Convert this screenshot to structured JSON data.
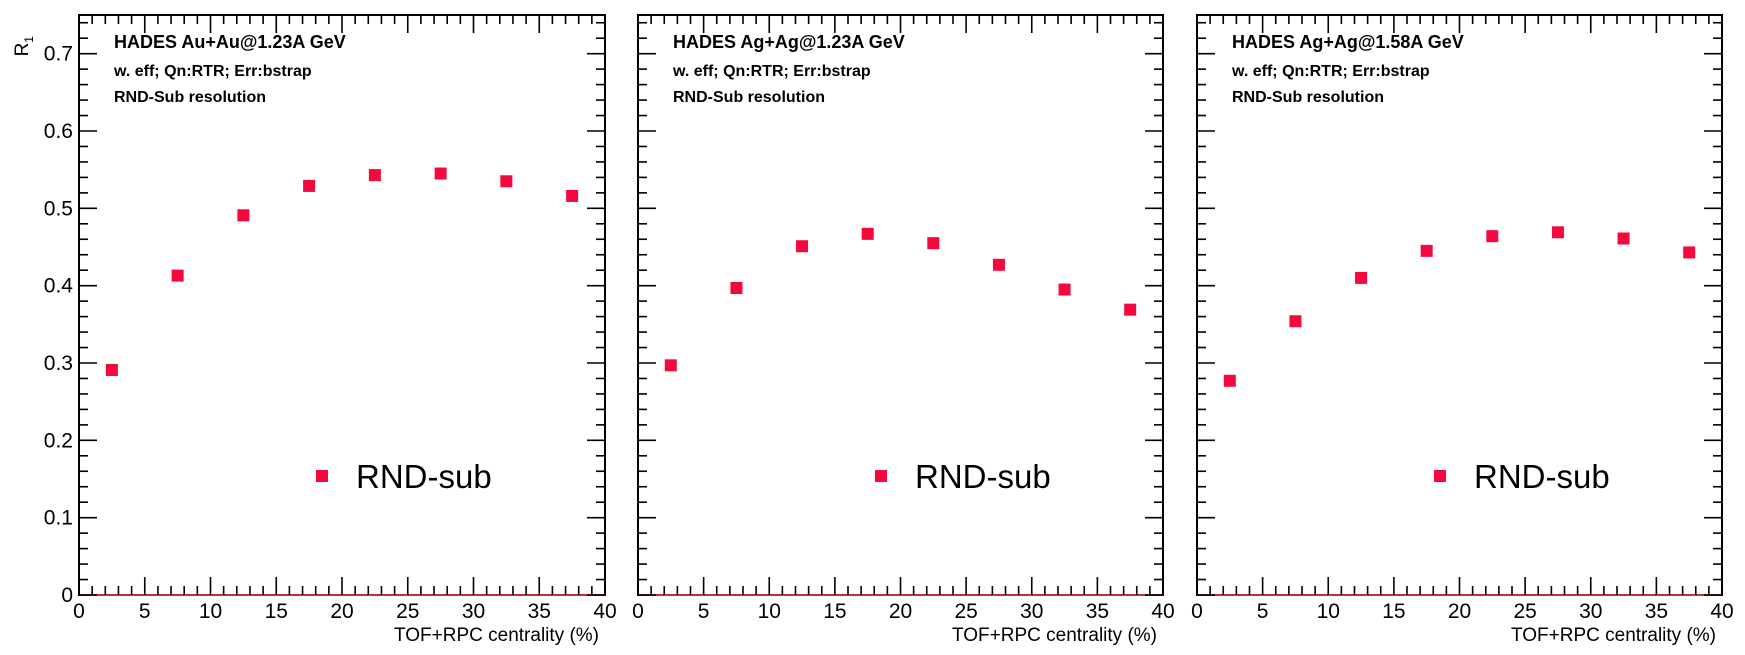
{
  "colors": {
    "marker": "#f5083e",
    "axis": "#000000",
    "zero_line": "#c0303a",
    "background": "#ffffff"
  },
  "chart_data": [
    {
      "type": "scatter",
      "title": "HADES Au+Au@1.23A GeV",
      "annotations": [
        "w. eff; Qn:RTR; Err:bstrap",
        "RND-Sub resolution"
      ],
      "xlabel": "TOF+RPC centrality (%)",
      "ylabel": "R",
      "ylabel_sub": "1",
      "xlim": [
        0,
        40
      ],
      "ylim": [
        0,
        0.75
      ],
      "xticks": [
        "0",
        "5",
        "10",
        "15",
        "20",
        "25",
        "30",
        "35",
        "40"
      ],
      "yticks": [
        "0",
        "0.1",
        "0.2",
        "0.3",
        "0.4",
        "0.5",
        "0.6",
        "0.7"
      ],
      "legend": {
        "label": "RND-sub",
        "position": "bottom-center"
      },
      "series": [
        {
          "name": "RND-sub",
          "x": [
            2.5,
            7.5,
            12.5,
            17.5,
            22.5,
            27.5,
            32.5,
            37.5
          ],
          "y": [
            0.291,
            0.413,
            0.491,
            0.529,
            0.543,
            0.545,
            0.535,
            0.516
          ]
        }
      ]
    },
    {
      "type": "scatter",
      "title": "HADES Ag+Ag@1.23A GeV",
      "annotations": [
        "w. eff; Qn:RTR; Err:bstrap",
        "RND-Sub resolution"
      ],
      "xlabel": "TOF+RPC centrality (%)",
      "ylabel": "",
      "ylabel_sub": "",
      "xlim": [
        0,
        40
      ],
      "ylim": [
        0,
        0.75
      ],
      "xticks": [
        "0",
        "5",
        "10",
        "15",
        "20",
        "25",
        "30",
        "35",
        "40"
      ],
      "yticks": [],
      "legend": {
        "label": "RND-sub",
        "position": "bottom-center"
      },
      "series": [
        {
          "name": "RND-sub",
          "x": [
            2.5,
            7.5,
            12.5,
            17.5,
            22.5,
            27.5,
            32.5,
            37.5
          ],
          "y": [
            0.297,
            0.397,
            0.451,
            0.467,
            0.455,
            0.427,
            0.395,
            0.369
          ]
        }
      ]
    },
    {
      "type": "scatter",
      "title": "HADES Ag+Ag@1.58A GeV",
      "annotations": [
        "w. eff; Qn:RTR; Err:bstrap",
        "RND-Sub resolution"
      ],
      "xlabel": "TOF+RPC centrality (%)",
      "ylabel": "",
      "ylabel_sub": "",
      "xlim": [
        0,
        40
      ],
      "ylim": [
        0,
        0.75
      ],
      "xticks": [
        "0",
        "5",
        "10",
        "15",
        "20",
        "25",
        "30",
        "35",
        "40"
      ],
      "yticks": [],
      "legend": {
        "label": "RND-sub",
        "position": "bottom-center"
      },
      "series": [
        {
          "name": "RND-sub",
          "x": [
            2.5,
            7.5,
            12.5,
            17.5,
            22.5,
            27.5,
            32.5,
            37.5
          ],
          "y": [
            0.277,
            0.354,
            0.41,
            0.445,
            0.464,
            0.469,
            0.461,
            0.443
          ]
        }
      ]
    }
  ]
}
